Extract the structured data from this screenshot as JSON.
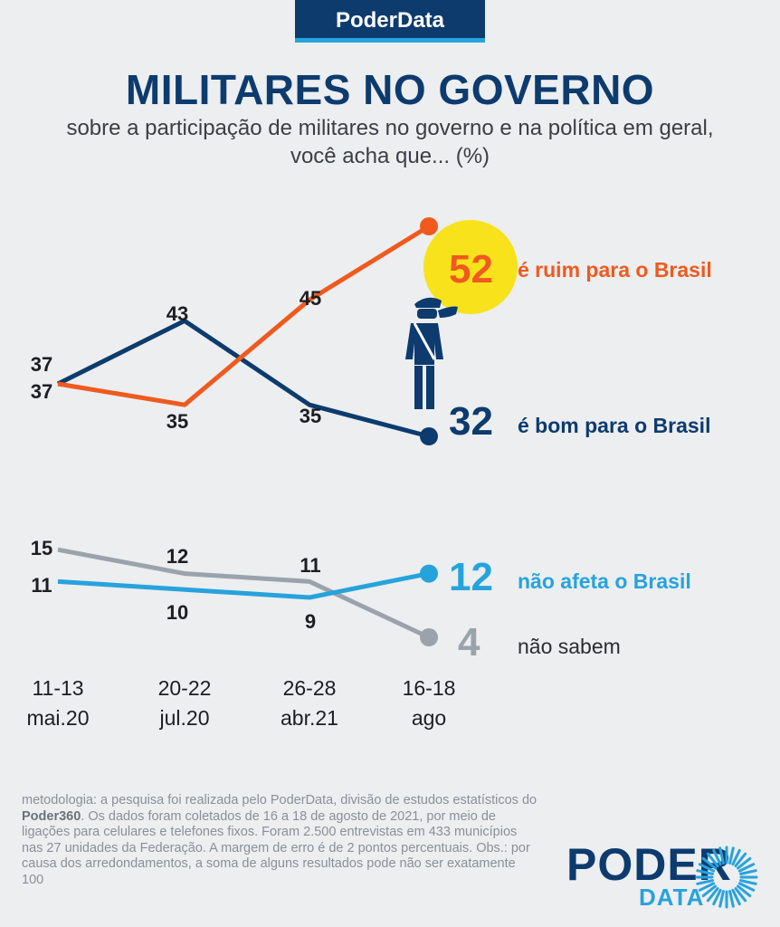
{
  "header": {
    "brand": "PoderData"
  },
  "title": "MILITARES NO GOVERNO",
  "subtitle": "sobre a participação de militares no governo e na política em geral, você acha que... (%)",
  "colors": {
    "ruim": "#f05a1e",
    "bom": "#0d3b6e",
    "nao_afeta": "#27a3dc",
    "nao_sabem": "#9aa3ab",
    "highlight": "#f8e21b"
  },
  "chart_data": {
    "type": "line",
    "x": [
      "11-13 mai.20",
      "20-22 jul.20",
      "26-28 abr.21",
      "16-18 ago"
    ],
    "x_ticks": [
      {
        "top": "11-13",
        "bottom": "mai.20"
      },
      {
        "top": "20-22",
        "bottom": "jul.20"
      },
      {
        "top": "26-28",
        "bottom": "abr.21"
      },
      {
        "top": "16-18",
        "bottom": "ago"
      }
    ],
    "series": [
      {
        "name": "é ruim para o Brasil",
        "key": "ruim",
        "values": [
          37,
          35,
          45,
          52
        ]
      },
      {
        "name": "é bom para o Brasil",
        "key": "bom",
        "values": [
          37,
          43,
          35,
          32
        ]
      },
      {
        "name": "não afeta o Brasil",
        "key": "nao_afeta",
        "values": [
          11,
          10,
          9,
          12
        ]
      },
      {
        "name": "não sabem",
        "key": "nao_sabem",
        "values": [
          15,
          12,
          11,
          4
        ]
      }
    ]
  },
  "methodology": {
    "part1": "metodologia: a pesquisa foi realizada pelo PoderData, divisão de estudos estatísticos do ",
    "brand": "Poder360",
    "part2": ". Os dados foram coletados de 16 a 18 de agosto de 2021, por meio de ligações para celulares e telefones fixos. Foram 2.500 entrevistas em 433 municípios nas 27 unidades da Federação. A margem de erro é de 2 pontos percentuais. Obs.: por causa dos arredondamentos, a soma de alguns resultados pode não ser exatamente 100"
  },
  "logo": {
    "poder": "PODER",
    "data": "DATA"
  }
}
